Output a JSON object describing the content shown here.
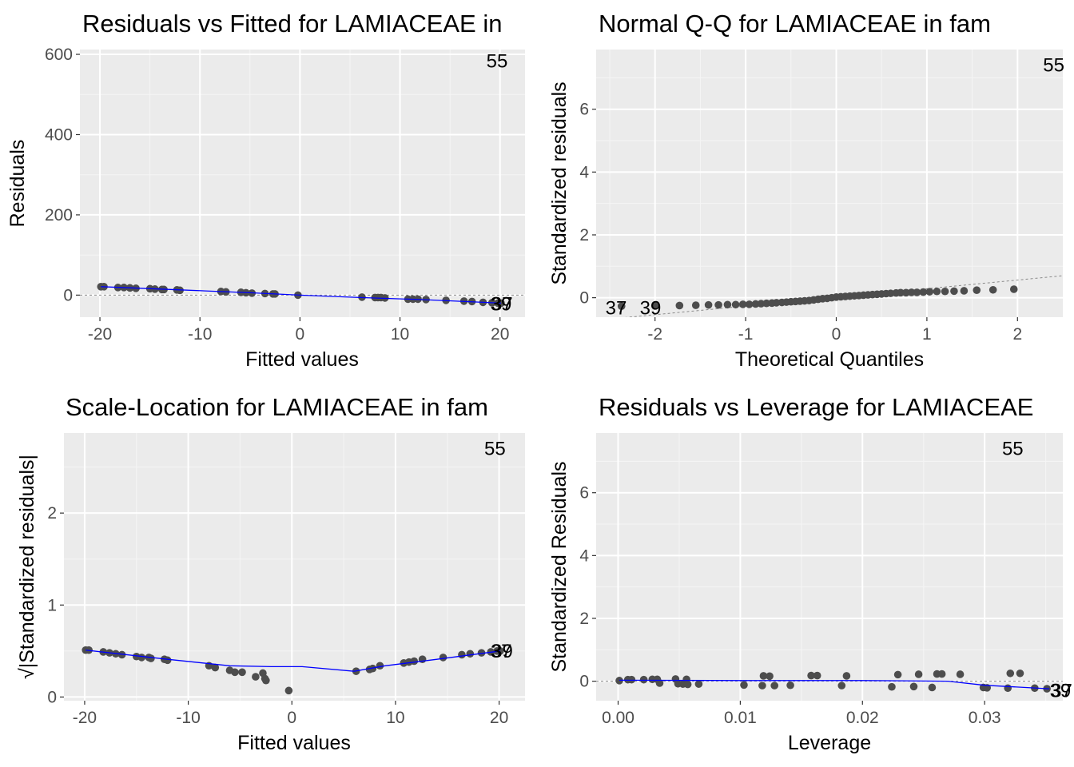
{
  "chart_data": [
    {
      "type": "scatter",
      "title": "Residuals vs Fitted for LAMIACEAE in",
      "xlabel": "Fitted values",
      "ylabel": "Residuals",
      "xlim": [
        -22,
        22.5
      ],
      "ylim": [
        -55,
        612
      ],
      "xticks": [
        -20,
        -10,
        0,
        10,
        20
      ],
      "xtick_labels": [
        "-20",
        "-10",
        "0",
        "10",
        "20"
      ],
      "yticks": [
        0,
        200,
        400,
        600
      ],
      "ytick_labels": [
        "0",
        "200",
        "400",
        "600"
      ],
      "grid": true,
      "reference_line": {
        "y": 0
      },
      "points": [
        [
          -19.9,
          21
        ],
        [
          -19.6,
          21
        ],
        [
          -18.2,
          19
        ],
        [
          -17.6,
          19
        ],
        [
          -17.0,
          18
        ],
        [
          -16.4,
          17
        ],
        [
          -15.0,
          16
        ],
        [
          -14.5,
          15
        ],
        [
          -13.8,
          14
        ],
        [
          -13.6,
          14
        ],
        [
          -12.3,
          13
        ],
        [
          -12.0,
          12
        ],
        [
          -7.9,
          9
        ],
        [
          -7.4,
          8
        ],
        [
          -5.9,
          7
        ],
        [
          -5.4,
          6
        ],
        [
          -4.8,
          5
        ],
        [
          -3.5,
          4
        ],
        [
          -2.7,
          3
        ],
        [
          -2.5,
          3
        ],
        [
          -0.2,
          0
        ],
        [
          6.2,
          -5
        ],
        [
          7.5,
          -6
        ],
        [
          7.8,
          -6
        ],
        [
          8.1,
          -6
        ],
        [
          8.5,
          -7
        ],
        [
          10.8,
          -10
        ],
        [
          11.3,
          -10
        ],
        [
          11.8,
          -10
        ],
        [
          12.6,
          -11
        ],
        [
          14.6,
          -13
        ],
        [
          16.4,
          -15
        ],
        [
          17.2,
          -16
        ],
        [
          18.3,
          -18
        ],
        [
          19.2,
          -19
        ],
        [
          19.8,
          -20
        ],
        [
          20.1,
          -20
        ]
      ],
      "smooth": [
        [
          -19.9,
          21
        ],
        [
          -12,
          13
        ],
        [
          -5,
          6
        ],
        [
          0,
          0
        ],
        [
          6,
          -6
        ],
        [
          12,
          -11
        ],
        [
          20.1,
          -20
        ]
      ],
      "point_labels": [
        {
          "text": "55",
          "x": 19.7,
          "y": 583
        },
        {
          "text": "39",
          "x": 20.1,
          "y": -22
        },
        {
          "text": "37",
          "x": 20.2,
          "y": -22
        }
      ]
    },
    {
      "type": "scatter",
      "title": "Normal Q-Q for LAMIACEAE in fam",
      "xlabel": "Theoretical Quantiles",
      "ylabel": "Standardized residuals",
      "xlim": [
        -2.65,
        2.5
      ],
      "ylim": [
        -0.62,
        7.9
      ],
      "xticks": [
        -2,
        -1,
        0,
        1,
        2
      ],
      "xtick_labels": [
        "-2",
        "-1",
        "0",
        "1",
        "2"
      ],
      "yticks": [
        0,
        2,
        4,
        6
      ],
      "ytick_labels": [
        "0",
        "2",
        "4",
        "6"
      ],
      "grid": true,
      "reference_line": {
        "from": [
          -2.65,
          -0.72
        ],
        "to": [
          2.5,
          0.7
        ]
      },
      "points": [
        [
          -2.37,
          -0.27
        ],
        [
          -2.0,
          -0.26
        ],
        [
          -1.73,
          -0.25
        ],
        [
          -1.55,
          -0.24
        ],
        [
          -1.41,
          -0.23
        ],
        [
          -1.3,
          -0.23
        ],
        [
          -1.2,
          -0.22
        ],
        [
          -1.11,
          -0.22
        ],
        [
          -1.03,
          -0.21
        ],
        [
          -0.96,
          -0.21
        ],
        [
          -0.89,
          -0.2
        ],
        [
          -0.83,
          -0.19
        ],
        [
          -0.77,
          -0.18
        ],
        [
          -0.71,
          -0.17
        ],
        [
          -0.66,
          -0.16
        ],
        [
          -0.6,
          -0.15
        ],
        [
          -0.55,
          -0.14
        ],
        [
          -0.5,
          -0.13
        ],
        [
          -0.45,
          -0.12
        ],
        [
          -0.4,
          -0.11
        ],
        [
          -0.35,
          -0.1
        ],
        [
          -0.3,
          -0.09
        ],
        [
          -0.25,
          -0.07
        ],
        [
          -0.2,
          -0.05
        ],
        [
          -0.15,
          -0.03
        ],
        [
          -0.1,
          -0.02
        ],
        [
          -0.05,
          0.0
        ],
        [
          0.0,
          0.02
        ],
        [
          0.05,
          0.03
        ],
        [
          0.1,
          0.04
        ],
        [
          0.15,
          0.05
        ],
        [
          0.2,
          0.06
        ],
        [
          0.25,
          0.07
        ],
        [
          0.3,
          0.08
        ],
        [
          0.35,
          0.09
        ],
        [
          0.4,
          0.1
        ],
        [
          0.45,
          0.11
        ],
        [
          0.5,
          0.12
        ],
        [
          0.55,
          0.13
        ],
        [
          0.6,
          0.14
        ],
        [
          0.66,
          0.15
        ],
        [
          0.71,
          0.16
        ],
        [
          0.77,
          0.16
        ],
        [
          0.83,
          0.17
        ],
        [
          0.89,
          0.17
        ],
        [
          0.96,
          0.18
        ],
        [
          1.03,
          0.19
        ],
        [
          1.11,
          0.2
        ],
        [
          1.2,
          0.2
        ],
        [
          1.3,
          0.21
        ],
        [
          1.41,
          0.22
        ],
        [
          1.55,
          0.24
        ],
        [
          1.73,
          0.25
        ],
        [
          1.96,
          0.27
        ]
      ],
      "point_labels": [
        {
          "text": "37",
          "x": -2.43,
          "y": -0.33
        },
        {
          "text": "39",
          "x": -2.05,
          "y": -0.33
        },
        {
          "text": "55",
          "x": 2.4,
          "y": 7.4
        }
      ]
    },
    {
      "type": "scatter",
      "title": "Scale-Location for LAMIACEAE in fam",
      "xlabel": "Fitted values",
      "ylabel": "√|Standardized residuals|",
      "xlim": [
        -22,
        22.5
      ],
      "ylim": [
        -0.04,
        2.87
      ],
      "xticks": [
        -20,
        -10,
        0,
        10,
        20
      ],
      "xtick_labels": [
        "-20",
        "-10",
        "0",
        "10",
        "20"
      ],
      "yticks": [
        0,
        1,
        2
      ],
      "ytick_labels": [
        "0",
        "1",
        "2"
      ],
      "grid": true,
      "points": [
        [
          -19.9,
          0.51
        ],
        [
          -19.6,
          0.51
        ],
        [
          -18.2,
          0.49
        ],
        [
          -17.6,
          0.48
        ],
        [
          -17.0,
          0.47
        ],
        [
          -16.4,
          0.46
        ],
        [
          -15.0,
          0.44
        ],
        [
          -14.5,
          0.43
        ],
        [
          -13.8,
          0.43
        ],
        [
          -13.6,
          0.42
        ],
        [
          -12.3,
          0.41
        ],
        [
          -12.0,
          0.4
        ],
        [
          -8.0,
          0.34
        ],
        [
          -7.4,
          0.32
        ],
        [
          -6.0,
          0.29
        ],
        [
          -5.5,
          0.27
        ],
        [
          -4.8,
          0.27
        ],
        [
          -3.5,
          0.22
        ],
        [
          -2.8,
          0.26
        ],
        [
          -2.6,
          0.2
        ],
        [
          -2.5,
          0.18
        ],
        [
          -0.3,
          0.07
        ],
        [
          6.2,
          0.28
        ],
        [
          7.5,
          0.3
        ],
        [
          7.8,
          0.31
        ],
        [
          8.5,
          0.34
        ],
        [
          10.8,
          0.37
        ],
        [
          11.3,
          0.38
        ],
        [
          11.8,
          0.39
        ],
        [
          12.6,
          0.41
        ],
        [
          14.6,
          0.43
        ],
        [
          16.4,
          0.46
        ],
        [
          17.2,
          0.47
        ],
        [
          18.3,
          0.48
        ],
        [
          19.2,
          0.49
        ],
        [
          19.8,
          0.5
        ],
        [
          20.1,
          0.5
        ]
      ],
      "smooth": [
        [
          -19.9,
          0.51
        ],
        [
          -12,
          0.41
        ],
        [
          -6,
          0.34
        ],
        [
          -2,
          0.33
        ],
        [
          1,
          0.33
        ],
        [
          6,
          0.28
        ],
        [
          9,
          0.34
        ],
        [
          14,
          0.41
        ],
        [
          20.1,
          0.5
        ]
      ],
      "point_labels": [
        {
          "text": "55",
          "x": 19.6,
          "y": 2.7
        },
        {
          "text": "37",
          "x": 20.2,
          "y": 0.5
        },
        {
          "text": "39",
          "x": 20.3,
          "y": 0.5
        }
      ]
    },
    {
      "type": "scatter",
      "title": "Residuals vs Leverage for LAMIACEAE",
      "xlabel": "Leverage",
      "ylabel": "Standardized Residuals",
      "xlim": [
        -0.0018,
        0.0364
      ],
      "ylim": [
        -0.62,
        7.9
      ],
      "xticks": [
        0.0,
        0.01,
        0.02,
        0.03
      ],
      "xtick_labels": [
        "0.00",
        "0.01",
        "0.02",
        "0.03"
      ],
      "yticks": [
        0,
        2,
        4,
        6
      ],
      "ytick_labels": [
        "0",
        "2",
        "4",
        "6"
      ],
      "grid": true,
      "reference_line": {
        "y": 0
      },
      "points": [
        [
          0.0001,
          0.02
        ],
        [
          0.0008,
          0.05
        ],
        [
          0.0011,
          0.05
        ],
        [
          0.0021,
          0.05
        ],
        [
          0.0028,
          0.06
        ],
        [
          0.0032,
          0.06
        ],
        [
          0.0034,
          -0.06
        ],
        [
          0.0047,
          0.07
        ],
        [
          0.0049,
          -0.08
        ],
        [
          0.0053,
          -0.09
        ],
        [
          0.0056,
          0.06
        ],
        [
          0.0057,
          -0.1
        ],
        [
          0.0066,
          -0.09
        ],
        [
          0.0103,
          -0.12
        ],
        [
          0.0118,
          -0.14
        ],
        [
          0.0119,
          0.17
        ],
        [
          0.0124,
          0.16
        ],
        [
          0.0128,
          -0.14
        ],
        [
          0.0141,
          -0.13
        ],
        [
          0.0158,
          0.18
        ],
        [
          0.0163,
          0.18
        ],
        [
          0.0183,
          -0.14
        ],
        [
          0.0187,
          0.17
        ],
        [
          0.0224,
          -0.18
        ],
        [
          0.0229,
          0.21
        ],
        [
          0.0242,
          -0.17
        ],
        [
          0.0246,
          0.22
        ],
        [
          0.0257,
          -0.2
        ],
        [
          0.0261,
          0.23
        ],
        [
          0.0265,
          0.23
        ],
        [
          0.028,
          0.22
        ],
        [
          0.0299,
          -0.2
        ],
        [
          0.0302,
          -0.21
        ],
        [
          0.0319,
          -0.22
        ],
        [
          0.0321,
          0.25
        ],
        [
          0.0329,
          0.25
        ],
        [
          0.0341,
          -0.22
        ],
        [
          0.0351,
          -0.24
        ]
      ],
      "smooth": [
        [
          0.0001,
          0.03
        ],
        [
          0.01,
          0.02
        ],
        [
          0.02,
          0.02
        ],
        [
          0.027,
          0.0
        ],
        [
          0.03,
          -0.13
        ],
        [
          0.0353,
          -0.24
        ]
      ],
      "point_labels": [
        {
          "text": "55",
          "x": 0.0323,
          "y": 7.4
        },
        {
          "text": "39",
          "x": 0.0362,
          "y": -0.3
        },
        {
          "text": "37",
          "x": 0.0363,
          "y": -0.3
        }
      ]
    }
  ]
}
